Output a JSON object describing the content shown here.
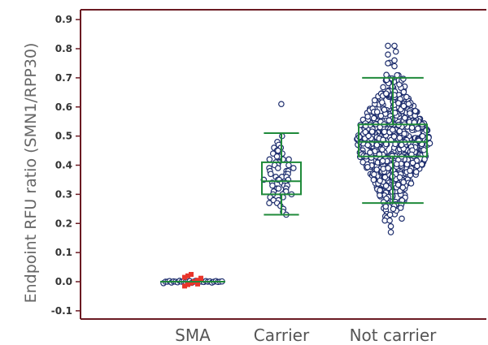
{
  "chart_data": {
    "type": "scatter",
    "subtype": "box-and-dot-plot",
    "title": "",
    "ylabel": "Endpoint RFU ratio (SMN1/RPP30)",
    "xlabel": "",
    "categories": [
      "SMA",
      "Carrier",
      "Not carrier"
    ],
    "ylim": [
      -0.12,
      0.92
    ],
    "yticks": [
      "-0.1",
      "0.0",
      "0.1",
      "0.2",
      "0.3",
      "0.4",
      "0.5",
      "0.6",
      "0.7",
      "0.8",
      "0.9"
    ],
    "ytick_values": [
      -0.1,
      0.0,
      0.1,
      0.2,
      0.3,
      0.4,
      0.5,
      0.6,
      0.7,
      0.8,
      0.9
    ],
    "grid": false,
    "legend": "none",
    "colors": {
      "axis": "#6b1a22",
      "points": "#1f2f6e",
      "box": "#1f8a3a",
      "outlier_highlight": "#e8352b"
    },
    "series": [
      {
        "category": "SMA",
        "box": {
          "whisker_low": -0.01,
          "q1": -0.005,
          "median": 0.0,
          "q3": 0.005,
          "whisker_high": 0.01
        },
        "points": [
          -0.005,
          0.0,
          0.0,
          0.002,
          -0.003,
          0.001,
          0.0,
          -0.002,
          0.003,
          0.0,
          0.001,
          -0.001,
          0.0,
          0.002,
          -0.004,
          0.0,
          0.003,
          -0.002,
          0.001,
          0.0,
          -0.001,
          0.002,
          0.0,
          0.001,
          -0.003,
          0.0,
          0.002,
          -0.001,
          0.0,
          0.001
        ],
        "highlighted_points": [
          -0.015,
          -0.01,
          -0.005,
          0.0,
          0.005,
          0.01,
          0.015,
          0.02,
          0.025,
          0.0,
          -0.008,
          0.012
        ]
      },
      {
        "category": "Carrier",
        "box": {
          "whisker_low": 0.23,
          "q1": 0.3,
          "median": 0.345,
          "q3": 0.41,
          "whisker_high": 0.51
        },
        "points": [
          0.61,
          0.5,
          0.48,
          0.47,
          0.46,
          0.46,
          0.45,
          0.45,
          0.44,
          0.44,
          0.43,
          0.43,
          0.42,
          0.42,
          0.42,
          0.41,
          0.41,
          0.4,
          0.4,
          0.4,
          0.39,
          0.39,
          0.39,
          0.38,
          0.38,
          0.38,
          0.37,
          0.37,
          0.37,
          0.36,
          0.36,
          0.36,
          0.35,
          0.35,
          0.35,
          0.35,
          0.34,
          0.34,
          0.34,
          0.33,
          0.33,
          0.33,
          0.32,
          0.32,
          0.32,
          0.31,
          0.31,
          0.31,
          0.3,
          0.3,
          0.3,
          0.29,
          0.29,
          0.28,
          0.28,
          0.27,
          0.27,
          0.26,
          0.25,
          0.24,
          0.23
        ]
      },
      {
        "category": "Not carrier",
        "box": {
          "whisker_low": 0.27,
          "q1": 0.43,
          "median": 0.48,
          "q3": 0.54,
          "whisker_high": 0.7
        },
        "points_range": [
          0.17,
          0.81
        ],
        "points_count_approx": 700,
        "points_center": 0.48,
        "points_spread": 0.11
      }
    ]
  }
}
